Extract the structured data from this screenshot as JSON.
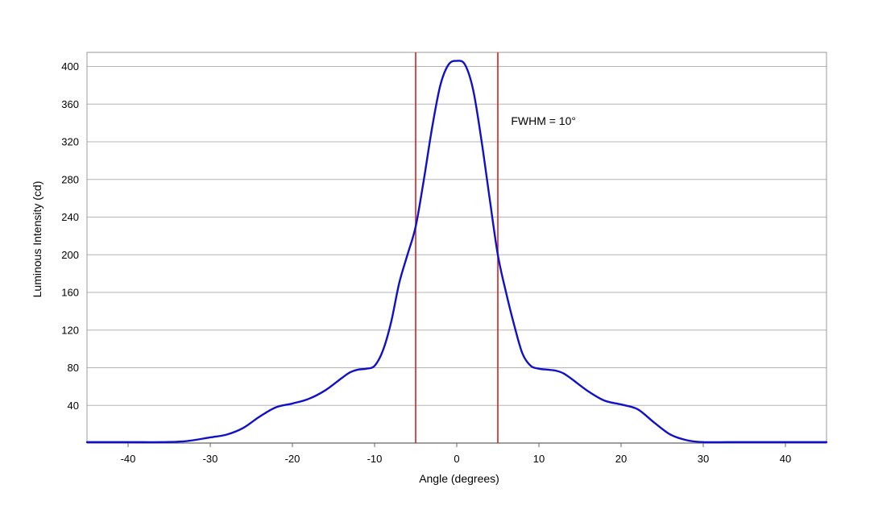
{
  "chart_data": {
    "type": "line",
    "title": "",
    "xlabel": "Angle (degrees)",
    "ylabel": "Luminous Intensity (cd)",
    "xlim": [
      -45,
      45
    ],
    "ylim": [
      0,
      415
    ],
    "x_ticks": [
      -40,
      -30,
      -20,
      -10,
      0,
      10,
      20,
      30,
      40
    ],
    "y_ticks": [
      40,
      80,
      120,
      160,
      200,
      240,
      280,
      320,
      360,
      400
    ],
    "grid": "horizontal",
    "colors": {
      "curve": "#1010c8",
      "markers": "#d42020",
      "grid": "#b4b4b4",
      "frame": "#999999"
    },
    "series": [
      {
        "x": [
          -45,
          -40,
          -36,
          -33,
          -30,
          -28,
          -26,
          -24,
          -22,
          -20,
          -18,
          -16,
          -14,
          -13,
          -12,
          -11,
          -10,
          -9,
          -8,
          -7,
          -6,
          -5,
          -4,
          -3,
          -2,
          -1,
          0,
          1,
          2,
          3,
          4,
          5,
          6,
          7,
          8,
          9,
          10,
          11,
          12,
          13,
          14,
          16,
          18,
          20,
          22,
          24,
          26,
          28,
          30,
          33,
          36,
          40,
          45
        ],
        "y": [
          1,
          1,
          1,
          2,
          6,
          9,
          16,
          28,
          38,
          42,
          47,
          56,
          69,
          75,
          78,
          79,
          82,
          98,
          128,
          170,
          200,
          230,
          280,
          335,
          380,
          402,
          406,
          402,
          375,
          322,
          260,
          200,
          160,
          125,
          95,
          82,
          79,
          78,
          77,
          74,
          68,
          55,
          45,
          41,
          36,
          22,
          9,
          3,
          1,
          1,
          1,
          1,
          1
        ]
      }
    ],
    "vertical_markers": [
      -5,
      5
    ],
    "annotations": [
      {
        "text": "FWHM = 10°",
        "x": 6.6,
        "y": 338
      }
    ]
  }
}
